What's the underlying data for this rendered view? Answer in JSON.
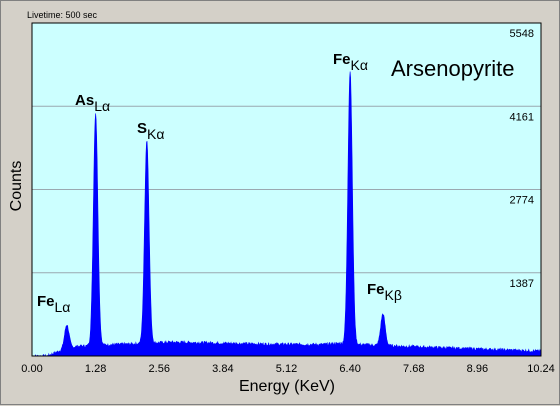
{
  "chart_data": {
    "type": "area",
    "title": "Arsenopyrite",
    "livetime": "Livetime: 500 sec",
    "xlabel": "Energy (KeV)",
    "ylabel": "Counts",
    "xlim": [
      0,
      10.24
    ],
    "ylim": [
      0,
      5548
    ],
    "x_ticks": [
      "0.00",
      "1.28",
      "2.56",
      "3.84",
      "5.12",
      "6.40",
      "7.68",
      "8.96",
      "10.24"
    ],
    "y_ticks": [
      "1387",
      "2774",
      "4161",
      "5548"
    ],
    "grid": true,
    "colors": {
      "plot_bg": "#ccffff",
      "fill": "#0000ff",
      "frame": "#d4d0c8"
    },
    "peaks": [
      {
        "element": "Fe",
        "line": "Lα",
        "energy": 0.7,
        "counts": 520
      },
      {
        "element": "As",
        "line": "Lα",
        "energy": 1.28,
        "counts": 4050
      },
      {
        "element": "S",
        "line": "Kα",
        "energy": 2.31,
        "counts": 3600
      },
      {
        "element": "Fe",
        "line": "Kα",
        "energy": 6.4,
        "counts": 4750
      },
      {
        "element": "Fe",
        "line": "Kβ",
        "energy": 7.06,
        "counts": 700
      }
    ],
    "background": [
      [
        0.3,
        0
      ],
      [
        0.6,
        100
      ],
      [
        0.9,
        160
      ],
      [
        1.6,
        190
      ],
      [
        2.0,
        200
      ],
      [
        2.8,
        230
      ],
      [
        3.5,
        220
      ],
      [
        4.5,
        200
      ],
      [
        5.8,
        190
      ],
      [
        6.2,
        210
      ],
      [
        6.6,
        190
      ],
      [
        7.5,
        160
      ],
      [
        8.5,
        130
      ],
      [
        10.24,
        80
      ]
    ]
  }
}
